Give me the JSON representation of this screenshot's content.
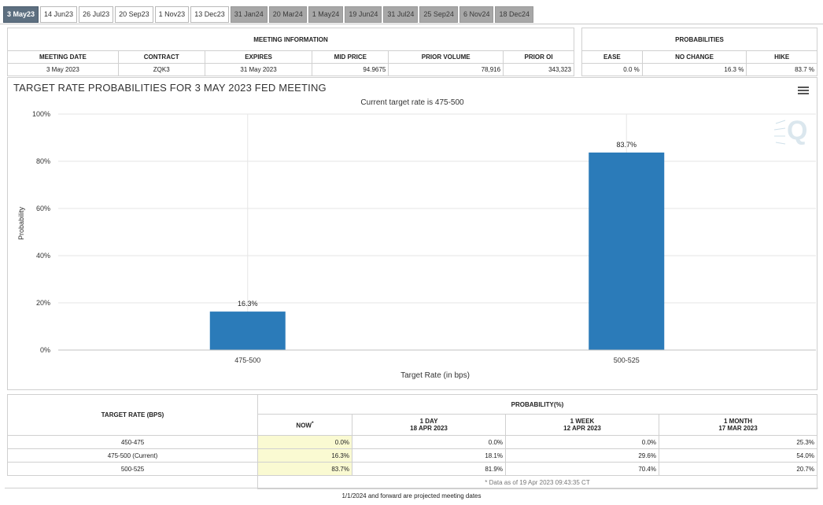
{
  "tabs": [
    {
      "label": "3 May23",
      "state": "active"
    },
    {
      "label": "14 Jun23",
      "state": "normal"
    },
    {
      "label": "26 Jul23",
      "state": "normal"
    },
    {
      "label": "20 Sep23",
      "state": "normal"
    },
    {
      "label": "1 Nov23",
      "state": "normal"
    },
    {
      "label": "13 Dec23",
      "state": "normal"
    },
    {
      "label": "31 Jan24",
      "state": "projected"
    },
    {
      "label": "20 Mar24",
      "state": "projected"
    },
    {
      "label": "1 May24",
      "state": "projected"
    },
    {
      "label": "19 Jun24",
      "state": "projected"
    },
    {
      "label": "31 Jul24",
      "state": "projected"
    },
    {
      "label": "25 Sep24",
      "state": "projected"
    },
    {
      "label": "6 Nov24",
      "state": "projected"
    },
    {
      "label": "18 Dec24",
      "state": "projected"
    }
  ],
  "meeting_info": {
    "title": "MEETING INFORMATION",
    "headers": [
      "MEETING DATE",
      "CONTRACT",
      "EXPIRES",
      "MID PRICE",
      "PRIOR VOLUME",
      "PRIOR OI"
    ],
    "values": [
      "3 May 2023",
      "ZQK3",
      "31 May 2023",
      "94.9675",
      "78,916",
      "343,323"
    ]
  },
  "probabilities": {
    "title": "PROBABILITIES",
    "headers": [
      "EASE",
      "NO CHANGE",
      "HIKE"
    ],
    "values": [
      "0.0 %",
      "16.3 %",
      "83.7 %"
    ]
  },
  "chart_menu_icon": "hamburger-menu-icon",
  "watermark_icon": "quikstrike-q-logo",
  "colors": {
    "bar": "#2b7bb9",
    "now_highlight": "#fafad2",
    "active_tab": "#5d6f80",
    "projected_tab": "#a7a7a7"
  },
  "chart_data": {
    "type": "bar",
    "title": "TARGET RATE PROBABILITIES FOR 3 MAY 2023 FED MEETING",
    "subtitle": "Current target rate is 475-500",
    "xlabel": "Target Rate (in bps)",
    "ylabel": "Probability",
    "categories": [
      "475-500",
      "500-525"
    ],
    "values": [
      16.3,
      83.7
    ],
    "data_labels": [
      "16.3%",
      "83.7%"
    ],
    "ylim": [
      0,
      100
    ],
    "yticks": [
      0,
      20,
      40,
      60,
      80,
      100
    ],
    "ytick_labels": [
      "0%",
      "20%",
      "40%",
      "60%",
      "80%",
      "100%"
    ],
    "grid": true,
    "legend": "none"
  },
  "prob_table": {
    "row_header": "TARGET RATE (BPS)",
    "group_header": "PROBABILITY(%)",
    "columns": [
      {
        "label": "NOW",
        "sup": "*",
        "date": ""
      },
      {
        "label": "1 DAY",
        "date": "18 APR 2023"
      },
      {
        "label": "1 WEEK",
        "date": "12 APR 2023"
      },
      {
        "label": "1 MONTH",
        "date": "17 MAR 2023"
      }
    ],
    "rows": [
      {
        "rate": "450-475",
        "values": [
          "0.0%",
          "0.0%",
          "0.0%",
          "25.3%"
        ]
      },
      {
        "rate": "475-500 (Current)",
        "values": [
          "16.3%",
          "18.1%",
          "29.6%",
          "54.0%"
        ]
      },
      {
        "rate": "500-525",
        "values": [
          "83.7%",
          "81.9%",
          "70.4%",
          "20.7%"
        ]
      }
    ],
    "note": "* Data as of 19 Apr 2023 09:43:35 CT"
  },
  "footer_note": "1/1/2024 and forward are projected meeting dates"
}
